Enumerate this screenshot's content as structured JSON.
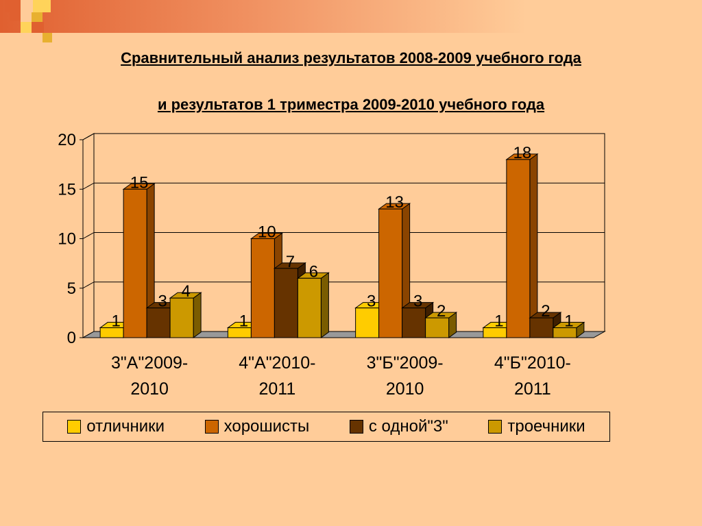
{
  "title_line1": "Сравнительный анализ результатов 2008-2009 учебного года",
  "title_line2": "и  результатов  1 триместра 2009-2010 учебного года",
  "chart_data": {
    "type": "bar",
    "categories": [
      "3\"А\"2009-2010",
      "4\"А\"2010-2011",
      "3\"Б\"2009-2010",
      "4\"Б\"2010-2011"
    ],
    "category_lines": [
      [
        "3\"А\"2009-",
        "2010"
      ],
      [
        "4\"А\"2010-",
        "2011"
      ],
      [
        "3\"Б\"2009-",
        "2010"
      ],
      [
        "4\"Б\"2010-",
        "2011"
      ]
    ],
    "series": [
      {
        "name": "отличники",
        "values": [
          1,
          1,
          3,
          1
        ],
        "color": "#FFCC00",
        "side": "#B08C00"
      },
      {
        "name": "хорошисты",
        "values": [
          15,
          10,
          13,
          18
        ],
        "color": "#CC6600",
        "side": "#8A4400"
      },
      {
        "name": "с одной\"3\"",
        "values": [
          3,
          7,
          3,
          2
        ],
        "color": "#663300",
        "side": "#3F1F00"
      },
      {
        "name": "троечники",
        "values": [
          4,
          6,
          2,
          1
        ],
        "color": "#CC9900",
        "side": "#7A5C00"
      }
    ],
    "ylim": [
      0,
      20
    ],
    "yticks": [
      "0",
      "5",
      "10",
      "15",
      "20"
    ],
    "grid": true,
    "legend": "bottom",
    "xlabel": "",
    "ylabel": ""
  }
}
